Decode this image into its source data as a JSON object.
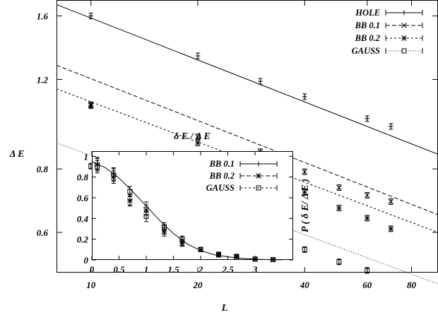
{
  "chart_data": [
    {
      "type": "line",
      "xlabel": "L",
      "ylabel": "Δ E",
      "xscale": "log",
      "yscale": "log",
      "xlim": [
        8,
        95
      ],
      "ylim": [
        0.5,
        1.72
      ],
      "xticks": [
        10,
        20,
        40,
        60,
        80
      ],
      "yticks": [
        0.6,
        0.8,
        1.2,
        1.6
      ],
      "ytick_labels": [
        "0.6",
        "0.8",
        "1.2",
        "1.6"
      ],
      "grid": false,
      "legend": "top-right",
      "series": [
        {
          "name": "HOLE",
          "style": "solid",
          "marker": "plus",
          "points": [
            [
              10,
              1.6
            ],
            [
              20,
              1.335
            ],
            [
              30,
              1.19
            ],
            [
              40,
              1.11
            ],
            [
              60,
              1.005
            ],
            [
              70,
              0.97
            ]
          ],
          "fit": [
            [
              8,
              1.685
            ],
            [
              95,
              0.855
            ]
          ]
        },
        {
          "name": "BB 0.1",
          "style": "dashed",
          "marker": "x",
          "points": [
            [
              10,
              1.07
            ],
            [
              20,
              0.925
            ],
            [
              30,
              0.865
            ],
            [
              40,
              0.79
            ],
            [
              50,
              0.735
            ],
            [
              60,
              0.71
            ],
            [
              70,
              0.69
            ]
          ],
          "fit": [
            [
              8,
              1.28
            ],
            [
              95,
              0.65
            ]
          ]
        },
        {
          "name": "BB 0.2",
          "style": "dotted",
          "marker": "star",
          "points": [
            [
              10,
              1.065
            ],
            [
              20,
              0.9
            ],
            [
              30,
              0.79
            ],
            [
              40,
              0.72
            ],
            [
              50,
              0.67
            ],
            [
              60,
              0.64
            ],
            [
              70,
              0.61
            ]
          ],
          "fit": [
            [
              8,
              1.15
            ],
            [
              95,
              0.6
            ]
          ]
        },
        {
          "name": "GAUSS",
          "style": "finedotted",
          "marker": "square",
          "points": [
            [
              10,
              0.81
            ],
            [
              20,
              0.69
            ],
            [
              30,
              0.61
            ],
            [
              40,
              0.555
            ],
            [
              50,
              0.525
            ],
            [
              60,
              0.505
            ]
          ],
          "fit": [
            [
              8,
              0.9
            ],
            [
              95,
              0.475
            ]
          ]
        }
      ]
    },
    {
      "type": "scatter",
      "title": "δ E / Δ E",
      "xlabel": "",
      "ylabel": "P ( δ E/ Δ E )",
      "xlim": [
        0,
        3.7
      ],
      "ylim": [
        0,
        1.05
      ],
      "xticks": [
        0,
        0.5,
        1,
        1.5,
        2,
        2.5,
        3
      ],
      "xtick_labels": [
        "0",
        "0.5",
        "1",
        "1.5",
        "2",
        "2.5",
        "3"
      ],
      "yticks": [
        0,
        0.2,
        0.4,
        0.6,
        0.8,
        1
      ],
      "ytick_labels": [
        "0",
        "0.2",
        "0.4",
        "0.6",
        "0.8",
        "1"
      ],
      "grid": false,
      "legend": "top-right",
      "curve": [
        [
          0,
          0.95
        ],
        [
          0.25,
          0.89
        ],
        [
          0.5,
          0.79
        ],
        [
          0.75,
          0.66
        ],
        [
          1.0,
          0.52
        ],
        [
          1.25,
          0.38
        ],
        [
          1.5,
          0.255
        ],
        [
          1.75,
          0.155
        ],
        [
          2.0,
          0.09
        ],
        [
          2.25,
          0.05
        ],
        [
          2.5,
          0.03
        ],
        [
          2.75,
          0.015
        ],
        [
          3.0,
          0.007
        ],
        [
          3.25,
          0.003
        ],
        [
          3.5,
          0.001
        ]
      ],
      "series": [
        {
          "name": "BB 0.1",
          "marker": "plus",
          "points": [
            [
              0.1,
              0.93
            ],
            [
              0.4,
              0.83
            ],
            [
              0.7,
              0.58
            ],
            [
              1.0,
              0.51
            ],
            [
              1.33,
              0.29
            ],
            [
              1.66,
              0.17
            ],
            [
              2.0,
              0.1
            ],
            [
              2.33,
              0.05
            ],
            [
              2.66,
              0.035
            ],
            [
              3.0,
              0.007
            ],
            [
              3.33,
              0.003
            ]
          ],
          "err": [
            0.06,
            0.06,
            0.05,
            0.05,
            0.04,
            0.03,
            0.02,
            0.015,
            0.012,
            0.006,
            0.004
          ]
        },
        {
          "name": "BB 0.2",
          "marker": "star",
          "points": [
            [
              0.1,
              0.92
            ],
            [
              0.4,
              0.8
            ],
            [
              0.7,
              0.57
            ],
            [
              1.0,
              0.48
            ],
            [
              1.33,
              0.27
            ],
            [
              1.66,
              0.16
            ],
            [
              2.0,
              0.1
            ],
            [
              2.33,
              0.045
            ],
            [
              2.66,
              0.03
            ],
            [
              3.0,
              0.007
            ],
            [
              3.33,
              0.003
            ]
          ],
          "err": [
            0.06,
            0.06,
            0.05,
            0.05,
            0.04,
            0.03,
            0.02,
            0.015,
            0.012,
            0.006,
            0.004
          ]
        },
        {
          "name": "GAUSS",
          "marker": "square",
          "points": [
            [
              0.1,
              0.9
            ],
            [
              0.4,
              0.82
            ],
            [
              0.7,
              0.66
            ],
            [
              1.0,
              0.42
            ],
            [
              1.33,
              0.32
            ],
            [
              1.66,
              0.2
            ],
            [
              2.0,
              0.1
            ],
            [
              2.33,
              0.055
            ],
            [
              2.66,
              0.035
            ],
            [
              3.0,
              0.008
            ],
            [
              3.33,
              0.003
            ]
          ],
          "err": [
            0.06,
            0.06,
            0.05,
            0.05,
            0.04,
            0.03,
            0.02,
            0.015,
            0.012,
            0.006,
            0.004
          ]
        }
      ]
    }
  ]
}
